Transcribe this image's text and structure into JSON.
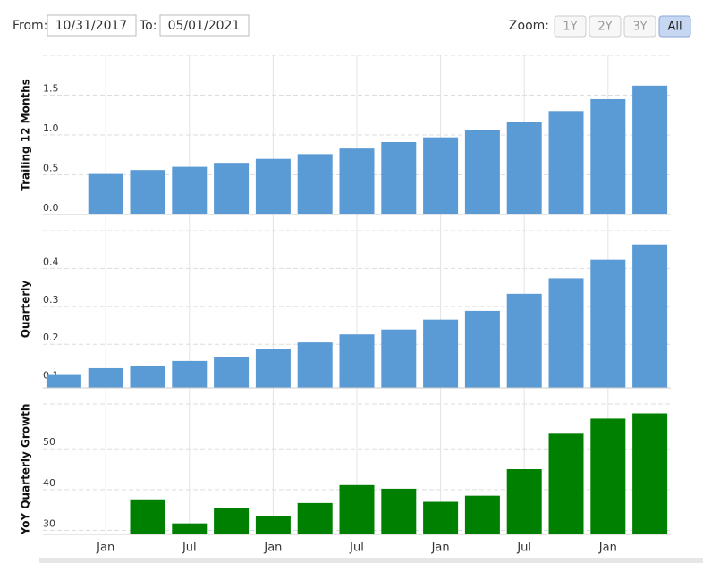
{
  "controls": {
    "from_label": "From:",
    "from_value": "10/31/2017",
    "to_label": "To:",
    "to_value": "05/01/2021",
    "zoom_label": "Zoom:",
    "zoom_options": [
      "1Y",
      "2Y",
      "3Y",
      "All"
    ],
    "zoom_active": "All"
  },
  "chart_data": [
    {
      "type": "bar",
      "y_label": "Trailing 12 Months",
      "color": "#5b9bd5",
      "grid": true,
      "values": [
        null,
        0.51,
        0.56,
        0.6,
        0.65,
        0.7,
        0.76,
        0.83,
        0.91,
        0.97,
        1.06,
        1.16,
        1.3,
        1.45,
        1.62
      ],
      "ylim": [
        0,
        2.0
      ],
      "yticks": [
        {
          "value": 0,
          "label": "0.0"
        },
        0.5,
        {
          "value": 1,
          "label": "1.0"
        },
        1.5
      ]
    },
    {
      "type": "bar",
      "y_label": "Quarterly",
      "color": "#5b9bd5",
      "grid": true,
      "values": [
        0.119,
        0.137,
        0.144,
        0.156,
        0.167,
        0.188,
        0.205,
        0.226,
        0.239,
        0.265,
        0.288,
        0.333,
        0.374,
        0.423,
        0.463
      ],
      "ylim": [
        0.085,
        0.5
      ],
      "yticks": [
        0.1,
        0.2,
        0.3,
        0.4
      ]
    },
    {
      "type": "bar",
      "y_label": "YoY Quarterly Growth",
      "color": "#008000",
      "grid": true,
      "categories": [
        null,
        "Jan",
        null,
        "Jul",
        null,
        "Jan",
        null,
        "Jul",
        null,
        "Jan",
        null,
        "Jul",
        null,
        "Jan",
        null
      ],
      "values": [
        null,
        null,
        37.6,
        31.7,
        35.4,
        33.6,
        36.7,
        41.1,
        40.2,
        37.0,
        38.5,
        45.0,
        53.7,
        57.4,
        58.7
      ],
      "ylim": [
        29,
        61
      ],
      "yticks": [
        30,
        40,
        50
      ]
    }
  ]
}
